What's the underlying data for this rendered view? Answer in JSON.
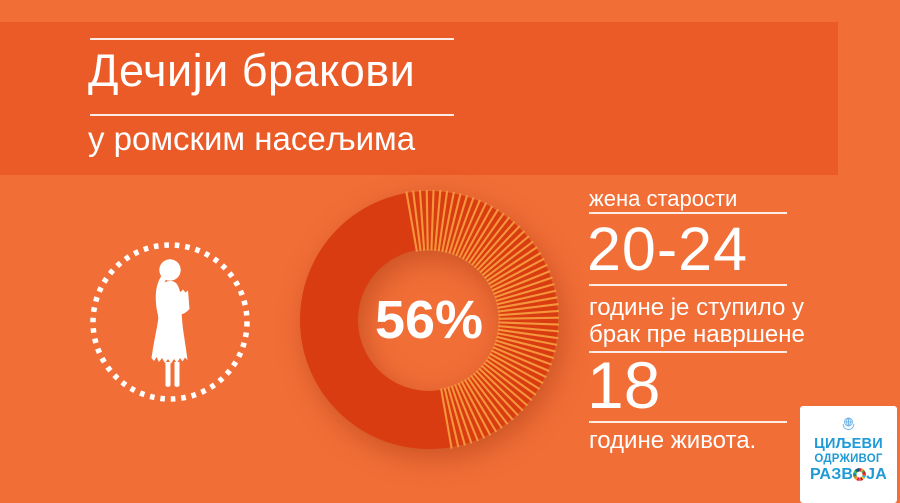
{
  "header": {
    "title": "Дечији бракови",
    "subtitle": "у ромским насељима"
  },
  "stat": {
    "intro": "жена старости",
    "age_range": "20-24",
    "body_line1": "године је ступило у",
    "body_line2": "брак пре навршене",
    "age": "18",
    "outro": "године живота."
  },
  "chart_data": {
    "type": "donut",
    "center_label": "56%",
    "values": [
      56,
      44
    ],
    "segment_styles": [
      "solid",
      "striped"
    ],
    "striped_start_deg": -10,
    "striped_end_deg": 172,
    "stripe_step_deg": 3.0,
    "colors": {
      "ring": "#D93C10",
      "stripe_gap": "#F5953C"
    }
  },
  "icons": {
    "girl": "girl-silhouette-icon",
    "un_emblem": "un-emblem-icon",
    "sdg_wheel": "sdg-wheel-icon"
  },
  "logo": {
    "line1": "ЦИЉЕВИ",
    "line2": "ОДРЖИВОГ",
    "line3_before_wheel": "РАЗВ",
    "line3_after_wheel": "ЈА"
  },
  "colors": {
    "background": "#F26E37",
    "band": "#EA5B28",
    "text": "#FFFFFF",
    "logo_blue": "#1F9AD6",
    "un_emblem_blue": "#74B6E5",
    "sdg_wheel": [
      "#E5243B",
      "#DDA63A",
      "#4C9F38",
      "#C5192D",
      "#FF3A21",
      "#26BDE2",
      "#FCC30B",
      "#A21942",
      "#FD6925",
      "#DD1367",
      "#FD9D24",
      "#BF8B2E",
      "#3F7E44",
      "#0A97D9",
      "#56C02B",
      "#00689D",
      "#19486A"
    ]
  }
}
